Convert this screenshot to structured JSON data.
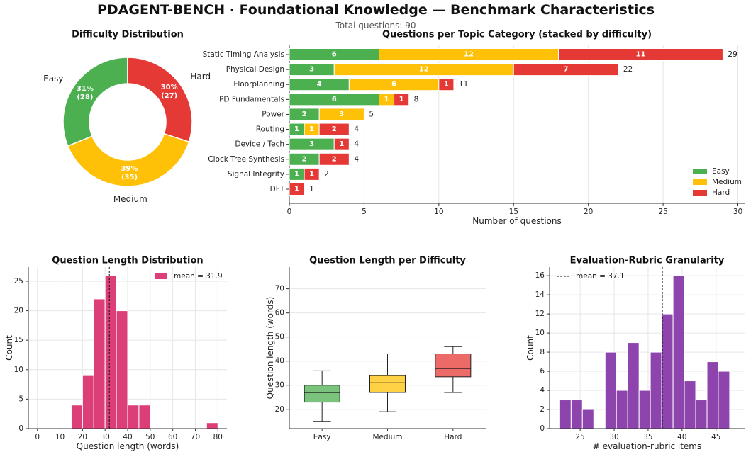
{
  "title": "PDAGENT-BENCH · Foundational Knowledge — Benchmark Characteristics",
  "subtitle": "Total questions: 90",
  "chart_data": [
    {
      "type": "pie",
      "title": "Difficulty Distribution",
      "categories": [
        "Easy",
        "Medium",
        "Hard"
      ],
      "values": [
        28,
        35,
        27
      ],
      "percent_labels": [
        "31%",
        "39%",
        "30%"
      ],
      "value_labels": [
        "(28)",
        "(35)",
        "(27)"
      ],
      "colors": [
        "#4caf50",
        "#ffc107",
        "#e53935"
      ],
      "donut": true
    },
    {
      "type": "stacked_barh",
      "title": "Questions per Topic Category (stacked by difficulty)",
      "categories": [
        "Static Timing Analysis",
        "Physical Design",
        "Floorplanning",
        "PD Fundamentals",
        "Power",
        "Routing",
        "Device / Tech",
        "Clock Tree Synthesis",
        "Signal Integrity",
        "DFT"
      ],
      "series": [
        {
          "name": "Easy",
          "color": "#4caf50",
          "values": [
            6,
            3,
            4,
            6,
            2,
            1,
            3,
            2,
            1,
            0
          ]
        },
        {
          "name": "Medium",
          "color": "#ffc107",
          "values": [
            12,
            12,
            6,
            1,
            3,
            1,
            0,
            0,
            0,
            0
          ]
        },
        {
          "name": "Hard",
          "color": "#e53935",
          "values": [
            11,
            7,
            1,
            1,
            0,
            2,
            1,
            2,
            1,
            1
          ]
        }
      ],
      "totals": [
        29,
        22,
        11,
        8,
        5,
        4,
        4,
        4,
        2,
        1
      ],
      "xlim": [
        0,
        30.45
      ],
      "xticks": [
        0,
        5,
        10,
        15,
        20,
        25,
        30
      ],
      "xlabel": "Number of questions",
      "grid": "x",
      "legend": "lower right"
    },
    {
      "type": "histogram",
      "title": "Question Length Distribution",
      "color": "#dc3f78",
      "bins": [
        15,
        20,
        25,
        30,
        35,
        40,
        45,
        50,
        55,
        60,
        65,
        70,
        75,
        80
      ],
      "counts": [
        4,
        9,
        22,
        26,
        20,
        4,
        4,
        0,
        0,
        0,
        0,
        0,
        1
      ],
      "mean": 31.9,
      "mean_label": "mean = 31.9",
      "legend_marker": "patch",
      "legend": "upper right",
      "xlim": [
        -4,
        84
      ],
      "xticks": [
        0,
        10,
        20,
        30,
        40,
        50,
        60,
        70,
        80
      ],
      "ylim": [
        0,
        27.4
      ],
      "yticks": [
        0,
        5,
        10,
        15,
        20,
        25
      ],
      "xlabel": "Question length (words)",
      "ylabel": "Count",
      "grid": "both"
    },
    {
      "type": "box",
      "title": "Question Length per Difficulty",
      "categories": [
        "Easy",
        "Medium",
        "Hard"
      ],
      "colors": [
        "#4caf50",
        "#ffc107",
        "#e53935"
      ],
      "boxes": [
        {
          "min": 15,
          "q1": 23,
          "median": 27,
          "q3": 30,
          "max": 36
        },
        {
          "min": 19,
          "q1": 27,
          "median": 31,
          "q3": 34,
          "max": 43
        },
        {
          "min": 27,
          "q1": 33.5,
          "median": 37,
          "q3": 43,
          "max": 46
        }
      ],
      "ylim": [
        12,
        79
      ],
      "yticks": [
        20,
        30,
        40,
        50,
        60,
        70
      ],
      "ylabel": "Question length (words)",
      "grid": "y"
    },
    {
      "type": "histogram",
      "title": "Evaluation-Rubric Granularity",
      "color": "#8e44ad",
      "bins": [
        22,
        23.67,
        25.33,
        27,
        28.67,
        30.33,
        32,
        33.67,
        35.33,
        37,
        38.67,
        40.33,
        42,
        43.67,
        45.33,
        47
      ],
      "counts": [
        3,
        3,
        2,
        0,
        8,
        4,
        9,
        4,
        8,
        12,
        16,
        5,
        3,
        7,
        6
      ],
      "mean": 37.1,
      "mean_label": "mean = 37.1",
      "legend_marker": "line",
      "legend": "upper left",
      "xlim": [
        20.5,
        49.2
      ],
      "xticks": [
        25,
        30,
        35,
        40,
        45
      ],
      "ylim": [
        0,
        16.9
      ],
      "yticks": [
        0,
        2,
        4,
        6,
        8,
        10,
        12,
        14,
        16
      ],
      "xlabel": "# evaluation-rubric items",
      "ylabel": "Count",
      "grid": "both"
    }
  ]
}
